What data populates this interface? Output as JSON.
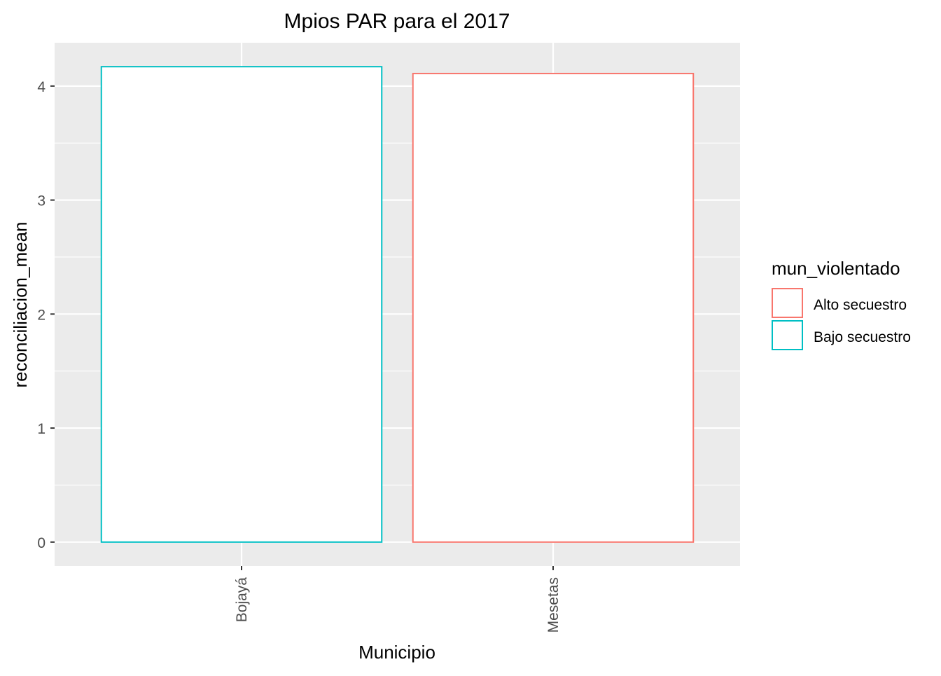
{
  "chart_data": {
    "type": "bar",
    "title": "Mpios PAR para el 2017",
    "xlabel": "Municipio",
    "ylabel": "reconciliacion_mean",
    "categories": [
      "Bojayá",
      "Mesetas"
    ],
    "values": [
      4.17,
      4.11
    ],
    "bar_groups": [
      "Bajo secuestro",
      "Alto secuestro"
    ],
    "ylim": [
      -0.21,
      4.38
    ],
    "y_ticks": [
      0,
      1,
      2,
      3,
      4
    ],
    "grid": true,
    "legend": {
      "title": "mun_violentado",
      "position": "right",
      "entries": [
        {
          "label": "Alto secuestro",
          "color": "#F8766D"
        },
        {
          "label": "Bajo secuestro",
          "color": "#00BFC4"
        }
      ]
    },
    "colors": {
      "panel_background": "#EBEBEB",
      "grid": "#FFFFFF",
      "bar_fill": "#FFFFFF",
      "axis_text": "#4D4D4D",
      "tick": "#333333"
    }
  }
}
